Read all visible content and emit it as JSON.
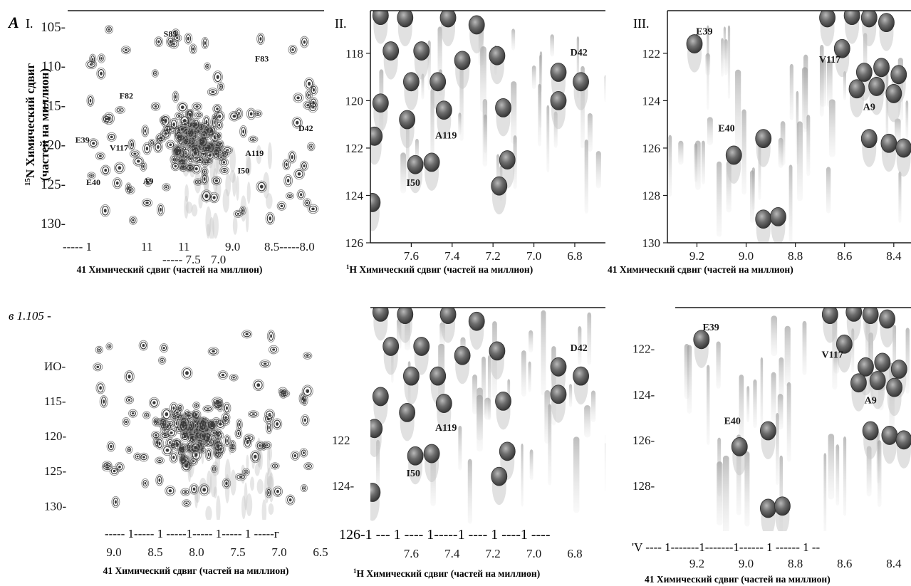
{
  "figure": {
    "top_panel_letter": "A",
    "bottom_row_text": "в 1.105 -"
  },
  "colors": {
    "peak_dark": "#3a3a3a",
    "peak_mid": "#8a8a8a",
    "peak_light": "#c8c8c8",
    "axis": "#1a1a1a"
  },
  "chart_data": [
    {
      "id": "A-I",
      "type": "scatter",
      "style": "contour",
      "panel_label": "I.",
      "ylabel_line1": "15N Химический сдвиг",
      "ylabel_sup": "15",
      "ylabel_rest": "N Химический сдвиг",
      "ylabel_line2": "(частей на миллион)",
      "xlabel": "41 Химический сдвиг (частей на миллион)",
      "x_tick_text": [
        "----- 1",
        "11",
        "11",
        "9.0",
        "8.5-----8.0",
        "----- 7.5",
        "7.0"
      ],
      "y_tick_labels": [
        "105-",
        "110-",
        "115-",
        "120-",
        "125-",
        "130-"
      ],
      "y_ticks": [
        105,
        110,
        115,
        120,
        125,
        130
      ],
      "xlim": [
        10.0,
        6.5
      ],
      "ylim": [
        103,
        132
      ],
      "peak_labels": [
        {
          "text": "S85",
          "x": 8.6,
          "y": 106.3
        },
        {
          "text": "F83",
          "x": 7.35,
          "y": 109.5
        },
        {
          "text": "F82",
          "x": 9.2,
          "y": 114.2
        },
        {
          "text": "D42",
          "x": 6.75,
          "y": 118.3
        },
        {
          "text": "E39",
          "x": 9.8,
          "y": 119.8
        },
        {
          "text": "V117",
          "x": 9.3,
          "y": 120.8
        },
        {
          "text": "A119",
          "x": 7.45,
          "y": 121.5
        },
        {
          "text": "I50",
          "x": 7.6,
          "y": 123.7
        },
        {
          "text": "E40",
          "x": 9.65,
          "y": 125.2
        },
        {
          "text": "A9",
          "x": 8.9,
          "y": 125.0
        }
      ]
    },
    {
      "id": "A-II",
      "type": "scatter",
      "style": "contour3d",
      "panel_label": "II.",
      "xlabel_sup": "1",
      "xlabel": "H Химический сдвиг (частей на миллион)",
      "x_ticks": [
        7.6,
        7.4,
        7.2,
        7.0,
        6.8
      ],
      "y_ticks": [
        118,
        120,
        122,
        124,
        126
      ],
      "xlim": [
        7.8,
        6.65
      ],
      "ylim": [
        116.2,
        126
      ],
      "peaks": [
        {
          "x": 7.75,
          "y": 116.4
        },
        {
          "x": 7.63,
          "y": 116.5
        },
        {
          "x": 7.42,
          "y": 116.5
        },
        {
          "x": 7.28,
          "y": 116.8
        },
        {
          "x": 7.7,
          "y": 117.9
        },
        {
          "x": 7.55,
          "y": 117.9
        },
        {
          "x": 7.35,
          "y": 118.3
        },
        {
          "x": 7.18,
          "y": 118.1
        },
        {
          "x": 6.88,
          "y": 118.8
        },
        {
          "x": 6.77,
          "y": 119.2
        },
        {
          "x": 7.6,
          "y": 119.2
        },
        {
          "x": 7.47,
          "y": 119.2
        },
        {
          "x": 7.75,
          "y": 120.1
        },
        {
          "x": 7.62,
          "y": 120.8
        },
        {
          "x": 7.44,
          "y": 120.4
        },
        {
          "x": 7.15,
          "y": 120.3
        },
        {
          "x": 6.88,
          "y": 120.0
        },
        {
          "x": 7.78,
          "y": 121.5
        },
        {
          "x": 7.58,
          "y": 122.7
        },
        {
          "x": 7.5,
          "y": 122.6
        },
        {
          "x": 7.13,
          "y": 122.5
        },
        {
          "x": 7.17,
          "y": 123.6
        },
        {
          "x": 7.79,
          "y": 124.3
        }
      ],
      "peak_labels": [
        {
          "text": "D42",
          "x": 6.78,
          "y": 118.1
        },
        {
          "text": "A119",
          "x": 7.43,
          "y": 121.6
        },
        {
          "text": "I50",
          "x": 7.59,
          "y": 123.6
        }
      ]
    },
    {
      "id": "A-III",
      "type": "scatter",
      "style": "contour3d",
      "panel_label": "III.",
      "xlabel": "41 Химический сдвиг (частей на миллион)",
      "x_ticks": [
        9.2,
        9.0,
        8.8,
        8.6,
        8.4
      ],
      "y_ticks": [
        122,
        124,
        126,
        128,
        130
      ],
      "xlim": [
        9.32,
        8.33
      ],
      "ylim": [
        120.2,
        130
      ],
      "peaks": [
        {
          "x": 9.21,
          "y": 121.6
        },
        {
          "x": 9.05,
          "y": 126.3
        },
        {
          "x": 8.93,
          "y": 125.6
        },
        {
          "x": 8.93,
          "y": 129.0
        },
        {
          "x": 8.87,
          "y": 128.9
        },
        {
          "x": 8.67,
          "y": 120.5
        },
        {
          "x": 8.57,
          "y": 120.4
        },
        {
          "x": 8.5,
          "y": 120.5
        },
        {
          "x": 8.43,
          "y": 120.7
        },
        {
          "x": 8.61,
          "y": 121.8
        },
        {
          "x": 8.52,
          "y": 122.8
        },
        {
          "x": 8.45,
          "y": 122.6
        },
        {
          "x": 8.38,
          "y": 122.9
        },
        {
          "x": 8.55,
          "y": 123.5
        },
        {
          "x": 8.47,
          "y": 123.4
        },
        {
          "x": 8.4,
          "y": 123.7
        },
        {
          "x": 8.5,
          "y": 125.6
        },
        {
          "x": 8.42,
          "y": 125.8
        },
        {
          "x": 8.36,
          "y": 126.0
        }
      ],
      "peak_labels": [
        {
          "text": "E39",
          "x": 9.17,
          "y": 121.2
        },
        {
          "text": "V117",
          "x": 8.66,
          "y": 122.4
        },
        {
          "text": "A9",
          "x": 8.5,
          "y": 124.4
        },
        {
          "text": "E40",
          "x": 9.08,
          "y": 125.3
        }
      ]
    },
    {
      "id": "B-I",
      "type": "scatter",
      "style": "contour",
      "ylabel_text": "в 1.105 -",
      "xlabel": "41 Химический сдвиг (частей на миллион)",
      "x_tick_text": "----- 1----- 1 -----1----- 1----- 1 -----г",
      "x_ticks": [
        9.0,
        8.5,
        8.0,
        7.5,
        7.0,
        6.5
      ],
      "y_tick_labels": [
        "ИО-",
        "115-",
        "120-",
        "125-",
        "130-"
      ],
      "y_ticks": [
        110,
        115,
        120,
        125,
        130
      ],
      "xlim": [
        9.4,
        6.4
      ],
      "ylim": [
        103,
        132
      ]
    },
    {
      "id": "B-II",
      "type": "scatter",
      "style": "contour3d",
      "xlabel_sup": "1",
      "xlabel": "H Химический сдвиг (частей на миллион)",
      "x_tick_text": "126-1 --- 1 ---- 1-----1 ---- 1 ----1 ----",
      "x_ticks": [
        7.6,
        7.4,
        7.2,
        7.0,
        6.8
      ],
      "y_tick_labels": [
        "122",
        "124-"
      ],
      "y_ticks": [
        122,
        124
      ],
      "xlim": [
        7.8,
        6.65
      ],
      "ylim": [
        116.2,
        126
      ],
      "peak_labels": [
        {
          "text": "D42",
          "x": 6.78,
          "y": 118.1
        },
        {
          "text": "A119",
          "x": 7.43,
          "y": 121.6
        },
        {
          "text": "I50",
          "x": 7.59,
          "y": 123.6
        }
      ]
    },
    {
      "id": "B-III",
      "type": "scatter",
      "style": "contour3d",
      "xlabel": "41 Химический сдвиг (частей на миллион)",
      "x_tick_text": "'V ---- 1-------1-------1------ 1 ------ 1 --",
      "x_ticks": [
        9.2,
        9.0,
        8.8,
        8.6,
        8.4
      ],
      "y_tick_labels": [
        "122-",
        "124-",
        "126-",
        "128-"
      ],
      "y_ticks": [
        122,
        124,
        126,
        128
      ],
      "xlim": [
        9.32,
        8.33
      ],
      "ylim": [
        120.2,
        130
      ],
      "peak_labels": [
        {
          "text": "E39",
          "x": 9.17,
          "y": 121.2
        },
        {
          "text": "V117",
          "x": 8.66,
          "y": 122.4
        },
        {
          "text": "A9",
          "x": 8.5,
          "y": 124.4
        },
        {
          "text": "E40",
          "x": 9.08,
          "y": 125.3
        }
      ]
    }
  ]
}
